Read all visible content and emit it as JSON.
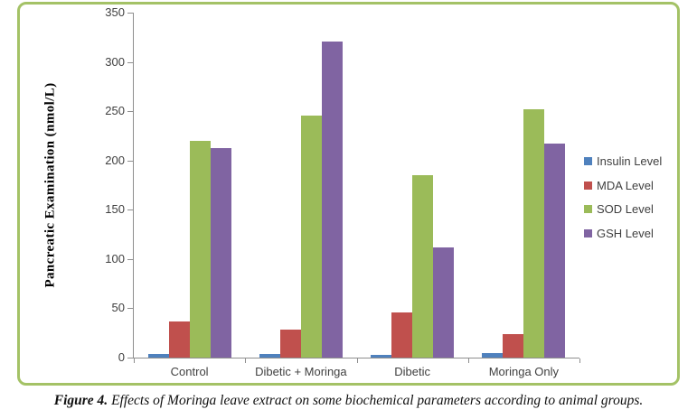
{
  "chart_data": {
    "type": "bar",
    "title": "",
    "ylabel": "Pancreatic Examination (nmol/L)",
    "xlabel": "",
    "ylim": [
      0,
      350
    ],
    "ytick_step": 50,
    "grid": false,
    "legend_position": "right",
    "categories": [
      "Control",
      "Dibetic + Moringa",
      "Dibetic",
      "Moringa Only"
    ],
    "series": [
      {
        "name": "Insulin Level",
        "color": "#4F81BD",
        "values": [
          4,
          4,
          3,
          5
        ]
      },
      {
        "name": "MDA Level",
        "color": "#C0504D",
        "values": [
          37,
          28,
          46,
          24
        ]
      },
      {
        "name": "SOD Level",
        "color": "#9BBB59",
        "values": [
          220,
          246,
          185,
          252
        ]
      },
      {
        "name": "GSH Level",
        "color": "#8064A2",
        "values": [
          213,
          321,
          112,
          217
        ]
      }
    ],
    "frame_color": "#A4C266",
    "axis_color": "#8E8E8E",
    "tick_label_color": "#3F3F3F"
  },
  "caption": {
    "label": "Figure 4.",
    "text": " Effects of Moringa leave extract on some biochemical parameters according to animal groups."
  }
}
